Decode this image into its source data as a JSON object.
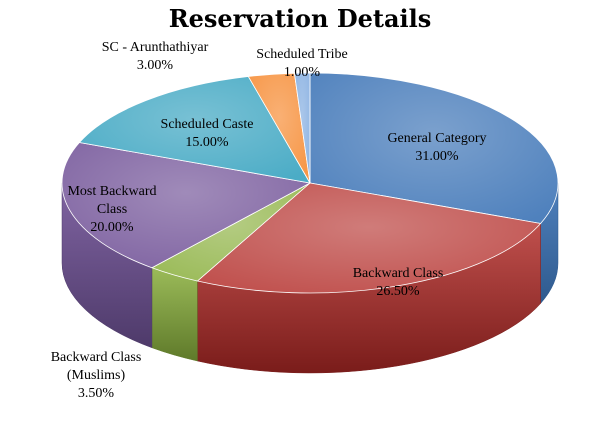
{
  "chart_data": {
    "type": "pie",
    "title": "Reservation Details",
    "slices": [
      {
        "name": "General Category",
        "label_lines": [
          "General Category",
          "31.00%"
        ],
        "value": 31.0,
        "color": "#4f81bd",
        "side_color": "#2f5a8e"
      },
      {
        "name": "Backward Class",
        "label_lines": [
          "Backward Class",
          "26.50%"
        ],
        "value": 26.5,
        "color": "#c0504d",
        "side_color": "#7a1c1a"
      },
      {
        "name": "Backward Class (Muslims)",
        "label_lines": [
          "Backward Class",
          "(Muslims)",
          "3.50%"
        ],
        "value": 3.5,
        "color": "#9bbb59",
        "side_color": "#5f7a2a"
      },
      {
        "name": "Most Backward Class",
        "label_lines": [
          "Most Backward",
          "Class",
          "20.00%"
        ],
        "value": 20.0,
        "color": "#8064a2",
        "side_color": "#4e3a6a"
      },
      {
        "name": "Scheduled Caste",
        "label_lines": [
          "Scheduled Caste",
          "15.00%"
        ],
        "value": 15.0,
        "color": "#4bacc6",
        "side_color": "#2a7388"
      },
      {
        "name": "SC - Arunthathiyar",
        "label_lines": [
          "SC - Arunthathiyar",
          "3.00%"
        ],
        "value": 3.0,
        "color": "#f79646",
        "side_color": "#b3621f"
      },
      {
        "name": "Scheduled Tribe",
        "label_lines": [
          "Scheduled Tribe",
          "1.00%"
        ],
        "value": 1.0,
        "color": "#8eb4e3",
        "side_color": "#5a81b3"
      }
    ],
    "style": "3d-pie",
    "legend": "none",
    "data_labels": "name-and-percent"
  }
}
